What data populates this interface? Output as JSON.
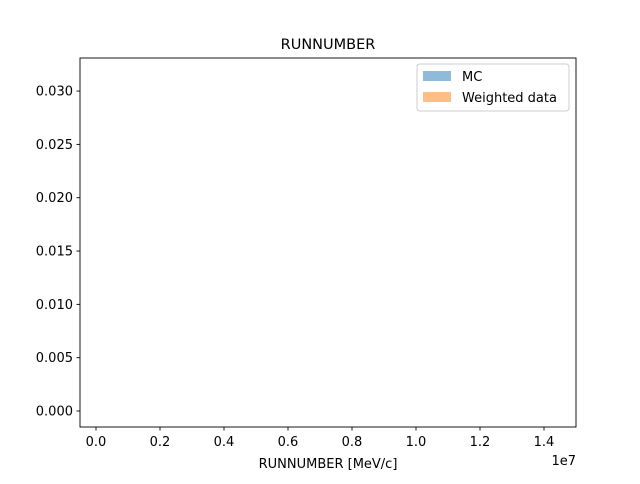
{
  "chart_data": {
    "type": "bar",
    "title": "RUNNUMBER",
    "xlabel": "RUNNUMBER [MeV/c]",
    "ylabel": "",
    "x_offset_text": "1e7",
    "xlim": [
      -0.05,
      1.5
    ],
    "ylim": [
      -0.0015,
      0.0331
    ],
    "xticks": [
      {
        "value": 0.0,
        "label": "0.0"
      },
      {
        "value": 0.2,
        "label": "0.2"
      },
      {
        "value": 0.4,
        "label": "0.4"
      },
      {
        "value": 0.6,
        "label": "0.6"
      },
      {
        "value": 0.8,
        "label": "0.8"
      },
      {
        "value": 1.0,
        "label": "1.0"
      },
      {
        "value": 1.2,
        "label": "1.2"
      },
      {
        "value": 1.4,
        "label": "1.4"
      }
    ],
    "yticks": [
      {
        "value": 0.0,
        "label": "0.000"
      },
      {
        "value": 0.005,
        "label": "0.005"
      },
      {
        "value": 0.01,
        "label": "0.010"
      },
      {
        "value": 0.015,
        "label": "0.015"
      },
      {
        "value": 0.02,
        "label": "0.020"
      },
      {
        "value": 0.025,
        "label": "0.025"
      },
      {
        "value": 0.03,
        "label": "0.030"
      }
    ],
    "grid": false,
    "legend_position": "top-right",
    "series": [
      {
        "name": "MC",
        "color": "#8fbbd9",
        "values": []
      },
      {
        "name": "Weighted data",
        "color": "#ffbe86",
        "values": []
      }
    ]
  }
}
